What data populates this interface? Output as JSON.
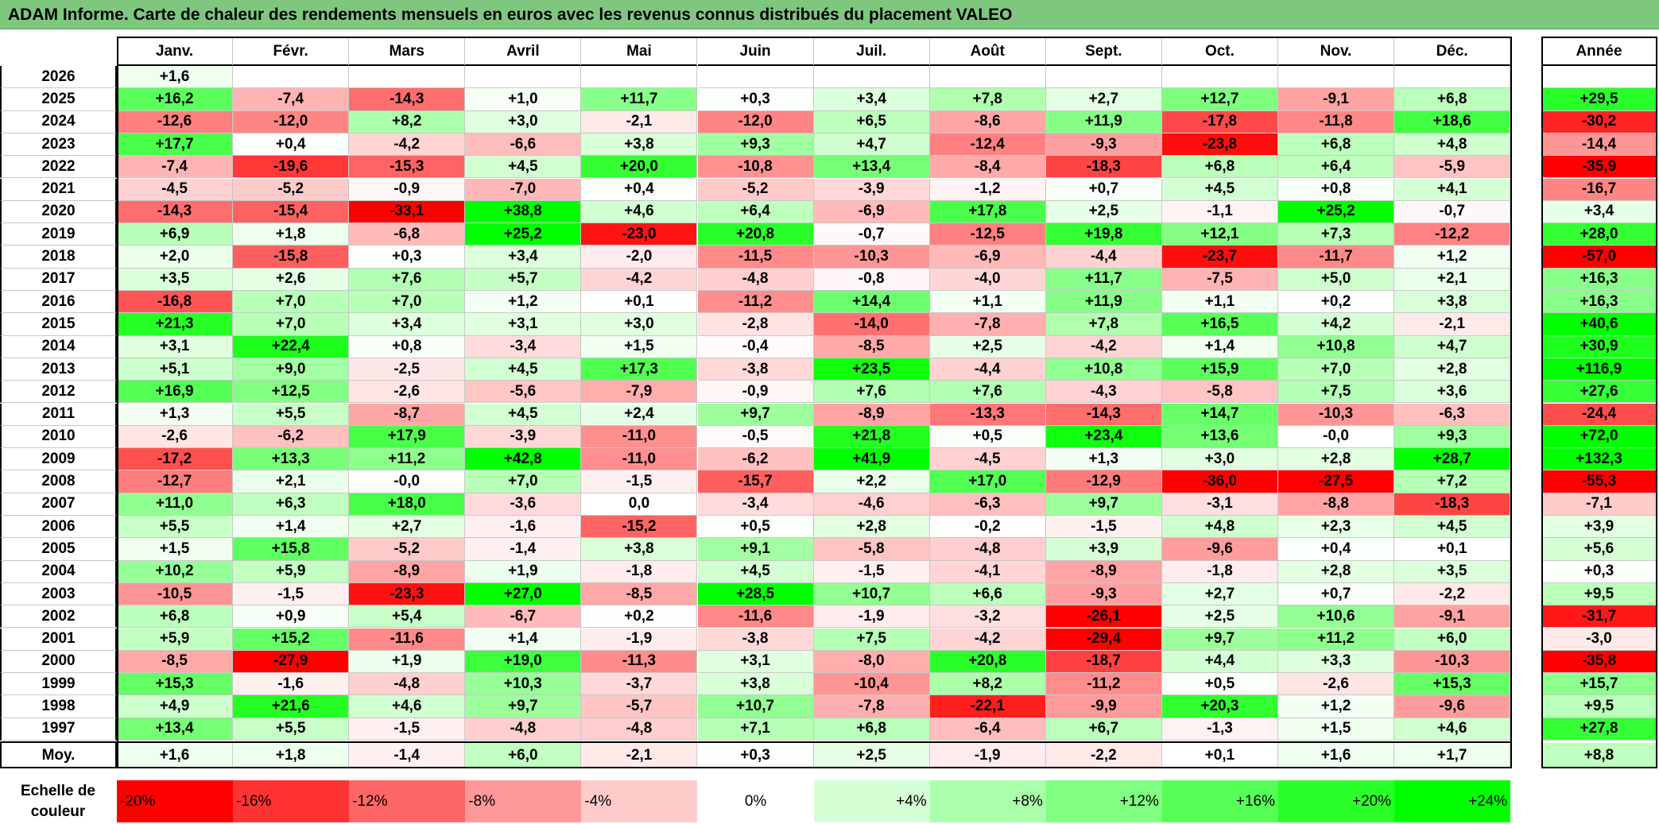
{
  "title": "ADAM Informe. Carte de chaleur des rendements mensuels en euros avec les revenus connus distribués du placement VALEO",
  "colors": {
    "neg_max": "#ff0000",
    "zero": "#ffffff",
    "pos_max": "#00ff00",
    "title_bg": "#7fc77f"
  },
  "chart_data": {
    "type": "heatmap",
    "months": [
      "Janv.",
      "Févr.",
      "Mars",
      "Avril",
      "Mai",
      "Juin",
      "Juil.",
      "Août",
      "Sept.",
      "Oct.",
      "Nov.",
      "Déc."
    ],
    "year_header": "Année",
    "years": [
      "2026",
      "2025",
      "2024",
      "2023",
      "2022",
      "2021",
      "2020",
      "2019",
      "2018",
      "2017",
      "2016",
      "2015",
      "2014",
      "2013",
      "2012",
      "2011",
      "2010",
      "2009",
      "2008",
      "2007",
      "2006",
      "2005",
      "2004",
      "2003",
      "2002",
      "2001",
      "2000",
      "1999",
      "1998",
      "1997"
    ],
    "values": [
      [
        "+1,6",
        "",
        "",
        "",
        "",
        "",
        "",
        "",
        "",
        "",
        "",
        ""
      ],
      [
        "+16,2",
        "-7,4",
        "-14,3",
        "+1,0",
        "+11,7",
        "+0,3",
        "+3,4",
        "+7,8",
        "+2,7",
        "+12,7",
        "-9,1",
        "+6,8"
      ],
      [
        "-12,6",
        "-12,0",
        "+8,2",
        "+3,0",
        "-2,1",
        "-12,0",
        "+6,5",
        "-8,6",
        "+11,9",
        "-17,8",
        "-11,8",
        "+18,6"
      ],
      [
        "+17,7",
        "+0,4",
        "-4,2",
        "-6,6",
        "+3,8",
        "+9,3",
        "+4,7",
        "-12,4",
        "-9,3",
        "-23,8",
        "+6,8",
        "+4,8"
      ],
      [
        "-7,4",
        "-19,6",
        "-15,3",
        "+4,5",
        "+20,0",
        "-10,8",
        "+13,4",
        "-8,4",
        "-18,3",
        "+6,8",
        "+6,4",
        "-5,9"
      ],
      [
        "-4,5",
        "-5,2",
        "-0,9",
        "-7,0",
        "+0,4",
        "-5,2",
        "-3,9",
        "-1,2",
        "+0,7",
        "+4,5",
        "+0,8",
        "+4,1"
      ],
      [
        "-14,3",
        "-15,4",
        "-33,1",
        "+38,8",
        "+4,6",
        "+6,4",
        "-6,9",
        "+17,8",
        "+2,5",
        "-1,1",
        "+25,2",
        "-0,7"
      ],
      [
        "+6,9",
        "+1,8",
        "-6,8",
        "+25,2",
        "-23,0",
        "+20,8",
        "-0,7",
        "-12,5",
        "+19,8",
        "+12,1",
        "+7,3",
        "-12,2"
      ],
      [
        "+2,0",
        "-15,8",
        "+0,3",
        "+3,4",
        "-2,0",
        "-11,5",
        "-10,3",
        "-6,9",
        "-4,4",
        "-23,7",
        "-11,7",
        "+1,2"
      ],
      [
        "+3,5",
        "+2,6",
        "+7,6",
        "+5,7",
        "-4,2",
        "-4,8",
        "-0,8",
        "-4,0",
        "+11,7",
        "-7,5",
        "+5,0",
        "+2,1"
      ],
      [
        "-16,8",
        "+7,0",
        "+7,0",
        "+1,2",
        "+0,1",
        "-11,2",
        "+14,4",
        "+1,1",
        "+11,9",
        "+1,1",
        "+0,2",
        "+3,8"
      ],
      [
        "+21,3",
        "+7,0",
        "+3,4",
        "+3,1",
        "+3,0",
        "-2,8",
        "-14,0",
        "-7,8",
        "+7,8",
        "+16,5",
        "+4,2",
        "-2,1"
      ],
      [
        "+3,1",
        "+22,4",
        "+0,8",
        "-3,4",
        "+1,5",
        "-0,4",
        "-8,5",
        "+2,5",
        "-4,2",
        "+1,4",
        "+10,8",
        "+4,7"
      ],
      [
        "+5,1",
        "+9,0",
        "-2,5",
        "+4,5",
        "+17,3",
        "-3,8",
        "+23,5",
        "-4,4",
        "+10,8",
        "+15,9",
        "+7,0",
        "+2,8"
      ],
      [
        "+16,9",
        "+12,5",
        "-2,6",
        "-5,6",
        "-7,9",
        "-0,9",
        "+7,6",
        "+7,6",
        "-4,3",
        "-5,8",
        "+7,5",
        "+3,6"
      ],
      [
        "+1,3",
        "+5,5",
        "-8,7",
        "+4,5",
        "+2,4",
        "+9,7",
        "-8,9",
        "-13,3",
        "-14,3",
        "+14,7",
        "-10,3",
        "-6,3"
      ],
      [
        "-2,6",
        "-6,2",
        "+17,9",
        "-3,9",
        "-11,0",
        "-0,5",
        "+21,8",
        "+0,5",
        "+23,4",
        "+13,6",
        "-0,0",
        "+9,3"
      ],
      [
        "-17,2",
        "+13,3",
        "+11,2",
        "+42,8",
        "-11,0",
        "-6,2",
        "+41,9",
        "-4,5",
        "+1,3",
        "+3,0",
        "+2,8",
        "+28,7"
      ],
      [
        "-12,7",
        "+2,1",
        "-0,0",
        "+7,0",
        "-1,5",
        "-15,7",
        "+2,2",
        "+17,0",
        "-12,9",
        "-36,0",
        "-27,5",
        "+7,2"
      ],
      [
        "+11,0",
        "+6,3",
        "+18,0",
        "-3,6",
        "0,0",
        "-3,4",
        "-4,6",
        "-6,3",
        "+9,7",
        "-3,1",
        "-8,8",
        "-18,3"
      ],
      [
        "+5,5",
        "+1,4",
        "+2,7",
        "-1,6",
        "-15,2",
        "+0,5",
        "+2,8",
        "-0,2",
        "-1,5",
        "+4,8",
        "+2,3",
        "+4,5"
      ],
      [
        "+1,5",
        "+15,8",
        "-5,2",
        "-1,4",
        "+3,8",
        "+9,1",
        "-5,8",
        "-4,8",
        "+3,9",
        "-9,6",
        "+0,4",
        "+0,1"
      ],
      [
        "+10,2",
        "+5,9",
        "-8,9",
        "+1,9",
        "-1,8",
        "+4,5",
        "-1,5",
        "-4,1",
        "-8,9",
        "-1,8",
        "+2,8",
        "+3,5"
      ],
      [
        "-10,5",
        "-1,5",
        "-23,3",
        "+27,0",
        "-8,5",
        "+28,5",
        "+10,7",
        "+6,6",
        "-9,3",
        "+2,7",
        "+0,7",
        "-2,2"
      ],
      [
        "+6,8",
        "+0,9",
        "+5,4",
        "-6,7",
        "+0,2",
        "-11,6",
        "-1,9",
        "-3,2",
        "-26,1",
        "+2,5",
        "+10,6",
        "-9,1"
      ],
      [
        "+5,9",
        "+15,2",
        "-11,6",
        "+1,4",
        "-1,9",
        "-3,8",
        "+7,5",
        "-4,2",
        "-29,4",
        "+9,7",
        "+11,2",
        "+6,0"
      ],
      [
        "-8,5",
        "-27,9",
        "+1,9",
        "+19,0",
        "-11,3",
        "+3,1",
        "-8,0",
        "+20,8",
        "-18,7",
        "+4,4",
        "+3,3",
        "-10,3"
      ],
      [
        "+15,3",
        "-1,6",
        "-4,8",
        "+10,3",
        "-3,7",
        "+3,8",
        "-10,4",
        "+8,2",
        "-11,2",
        "+0,5",
        "-2,6",
        "+15,3"
      ],
      [
        "+4,9",
        "+21,6",
        "+4,6",
        "+9,7",
        "-5,7",
        "+10,7",
        "-7,8",
        "-22,1",
        "-9,9",
        "+20,3",
        "+1,2",
        "-9,6"
      ],
      [
        "+13,4",
        "+5,5",
        "-1,5",
        "-4,8",
        "-4,8",
        "+7,1",
        "+6,8",
        "-6,4",
        "+6,7",
        "-1,3",
        "+1,5",
        "+4,6"
      ]
    ],
    "annual": [
      "",
      "+29,5",
      "-30,2",
      "-14,4",
      "-35,9",
      "-16,7",
      "+3,4",
      "+28,0",
      "-57,0",
      "+16,3",
      "+16,3",
      "+40,6",
      "+30,9",
      "+116,9",
      "+27,6",
      "-24,4",
      "+72,0",
      "+132,3",
      "-55,3",
      "-7,1",
      "+3,9",
      "+5,6",
      "+0,3",
      "+9,5",
      "-31,7",
      "-3,0",
      "-35,8",
      "+15,7",
      "+9,5",
      "+27,8"
    ],
    "mean_label": "Moy.",
    "mean_values": [
      "+1,6",
      "+1,8",
      "-1,4",
      "+6,0",
      "-2,1",
      "+0,3",
      "+2,5",
      "-1,9",
      "-2,2",
      "+0,1",
      "+1,6",
      "+1,7"
    ],
    "mean_annual": "+8,8",
    "scale_label": "Echelle de couleur",
    "scale": [
      {
        "label": "-20%",
        "value": -20
      },
      {
        "label": "-16%",
        "value": -16
      },
      {
        "label": "-12%",
        "value": -12
      },
      {
        "label": "-8%",
        "value": -8
      },
      {
        "label": "-4%",
        "value": -4
      },
      {
        "label": "0%",
        "value": 0
      },
      {
        "label": "+4%",
        "value": 4
      },
      {
        "label": "+8%",
        "value": 8
      },
      {
        "label": "+12%",
        "value": 12
      },
      {
        "label": "+16%",
        "value": 16
      },
      {
        "label": "+20%",
        "value": 20
      },
      {
        "label": "+24%",
        "value": 24
      }
    ]
  }
}
